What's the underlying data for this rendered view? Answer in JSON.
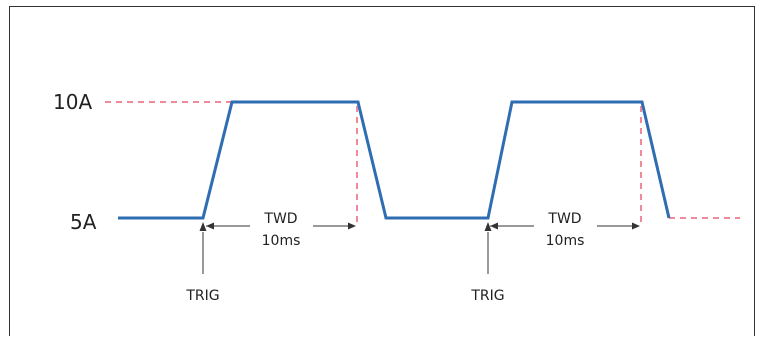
{
  "levels": {
    "high": "10A",
    "low": "5A"
  },
  "twd_label": "TWD",
  "twd_value": "10ms",
  "trig_label": "TRIG",
  "colors": {
    "waveform": "#2f6db3",
    "dashed": "#f08a9a",
    "arrows": "#333333"
  }
}
